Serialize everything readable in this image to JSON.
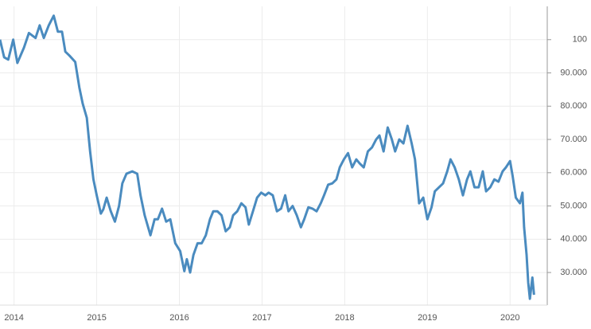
{
  "chart_data": {
    "type": "line",
    "x": [
      2013.83,
      2013.88,
      2013.93,
      2013.99,
      2014.04,
      2014.12,
      2014.18,
      2014.26,
      2014.31,
      2014.36,
      2014.42,
      2014.48,
      2014.53,
      2014.58,
      2014.62,
      2014.67,
      2014.74,
      2014.79,
      2014.83,
      2014.88,
      2014.92,
      2014.96,
      2015.0,
      2015.05,
      2015.08,
      2015.12,
      2015.17,
      2015.22,
      2015.27,
      2015.31,
      2015.36,
      2015.43,
      2015.49,
      2015.53,
      2015.58,
      2015.65,
      2015.7,
      2015.74,
      2015.79,
      2015.84,
      2015.89,
      2015.95,
      2016.01,
      2016.06,
      2016.09,
      2016.13,
      2016.17,
      2016.22,
      2016.27,
      2016.32,
      2016.37,
      2016.41,
      2016.46,
      2016.51,
      2016.56,
      2016.61,
      2016.65,
      2016.7,
      2016.75,
      2016.8,
      2016.84,
      2016.89,
      2016.94,
      2016.99,
      2017.04,
      2017.08,
      2017.13,
      2017.18,
      2017.23,
      2017.28,
      2017.32,
      2017.37,
      2017.42,
      2017.47,
      2017.51,
      2017.56,
      2017.61,
      2017.66,
      2017.71,
      2017.75,
      2017.8,
      2017.85,
      2017.9,
      2017.94,
      2017.99,
      2018.04,
      2018.09,
      2018.14,
      2018.18,
      2018.23,
      2018.28,
      2018.33,
      2018.38,
      2018.42,
      2018.47,
      2018.52,
      2018.57,
      2018.61,
      2018.66,
      2018.71,
      2018.76,
      2018.81,
      2018.85,
      2018.9,
      2018.95,
      2019.0,
      2019.05,
      2019.09,
      2019.14,
      2019.19,
      2019.24,
      2019.28,
      2019.33,
      2019.38,
      2019.43,
      2019.48,
      2019.52,
      2019.57,
      2019.62,
      2019.67,
      2019.71,
      2019.76,
      2019.81,
      2019.86,
      2019.91,
      2019.95,
      2020.0,
      2020.03,
      2020.07,
      2020.12,
      2020.15,
      2020.17,
      2020.2,
      2020.22,
      2020.24,
      2020.27,
      2020.29
    ],
    "series": [
      {
        "color": "#4a8bbf",
        "values": [
          100,
          94.7,
          94,
          100,
          93,
          97.6,
          102,
          100.5,
          104.3,
          100.5,
          104.3,
          107.2,
          102.4,
          102.4,
          96.4,
          95.2,
          93.3,
          85.6,
          80.8,
          76.5,
          66.4,
          58,
          53.2,
          47.7,
          49,
          52.5,
          48.4,
          45.3,
          50,
          56.8,
          59.7,
          60.4,
          59.7,
          53.2,
          47.2,
          41.2,
          46,
          46,
          49.2,
          45.3,
          46,
          38.8,
          36.4,
          30.4,
          34,
          30,
          35.3,
          38.8,
          38.8,
          41.2,
          46,
          48.4,
          48.4,
          47.2,
          42.4,
          43.6,
          47.2,
          48.4,
          50.8,
          49.6,
          44.4,
          48.4,
          52.5,
          54,
          53.2,
          54,
          53.2,
          48.4,
          49.2,
          53.2,
          48.4,
          50,
          47.2,
          43.6,
          46,
          49.6,
          49.2,
          48.4,
          50.8,
          53.2,
          56.4,
          56.8,
          58,
          61.6,
          64,
          65.9,
          61.6,
          64,
          62.8,
          61.6,
          66.4,
          67.6,
          70,
          71.2,
          66.4,
          73.6,
          70,
          66.4,
          70,
          68.8,
          74.1,
          68.8,
          64,
          50.8,
          52.5,
          46,
          49.6,
          54.4,
          55.6,
          56.8,
          60.4,
          64,
          61.6,
          58,
          53.2,
          58,
          60.4,
          55.6,
          55.6,
          60.4,
          54.4,
          55.6,
          58,
          57.3,
          60.4,
          61.6,
          63.5,
          59.2,
          52.5,
          50.8,
          54,
          43.6,
          35.3,
          26.9,
          22.1,
          28.5,
          23.3
        ]
      }
    ],
    "xlim": [
      2013.83,
      2020.45
    ],
    "xticks": [
      2014,
      2015,
      2016,
      2017,
      2018,
      2019,
      2020
    ],
    "ylim": [
      20.2,
      110
    ],
    "yticks": [
      100,
      {
        "value": 90,
        "label": "90.000"
      },
      {
        "value": 80,
        "label": "80.000"
      },
      {
        "value": 70,
        "label": "70.000"
      },
      {
        "value": 60,
        "label": "60.000"
      },
      {
        "value": 50,
        "label": "50.000"
      },
      {
        "value": 40,
        "label": "40.000"
      },
      {
        "value": 30,
        "label": "30.000"
      }
    ],
    "grid": true
  }
}
